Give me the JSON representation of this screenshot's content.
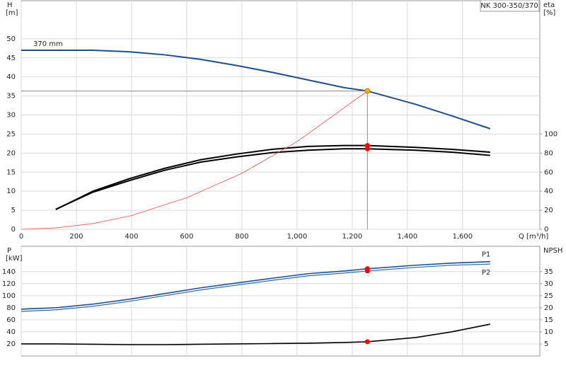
{
  "chart_data": [
    {
      "type": "line",
      "title": "NK 300-350/370",
      "x_label": "Q [m³/h]",
      "y_label": "H",
      "y_unit": "[m]",
      "y2_label": "eta",
      "y2_unit": "[%]",
      "xlim": [
        0,
        1880
      ],
      "xticks": [
        0,
        200,
        400,
        600,
        800,
        {
          "value": 1000,
          "label": "1,000"
        },
        {
          "value": 1200,
          "label": "1,200"
        },
        {
          "value": 1400,
          "label": "1,400"
        },
        {
          "value": 1600,
          "label": "1,600"
        }
      ],
      "show_xtick_labels": true,
      "ylim": [
        0,
        60
      ],
      "yticks": [
        0,
        5,
        10,
        15,
        20,
        25,
        30,
        35,
        40,
        45,
        50
      ],
      "y2lim": [
        0,
        240
      ],
      "y2ticks": [
        0,
        20,
        40,
        60,
        80,
        100
      ],
      "grid": true,
      "operating_q": 1255,
      "guide_color": "#888888",
      "x": [
        0,
        125,
        260,
        390,
        520,
        650,
        780,
        910,
        1040,
        1170,
        1255,
        1430,
        1560,
        1700
      ],
      "series": [
        {
          "name": "370 mm",
          "color": "#1f4e8c",
          "width": 2,
          "point_color": "#f5c400",
          "guides": true,
          "values": [
            47,
            47,
            47,
            46.6,
            45.8,
            44.6,
            43,
            41.2,
            39.2,
            37.2,
            36.3,
            32.8,
            29.8,
            26.4
          ]
        },
        {
          "color": "#000000",
          "width": 2,
          "axis": "y2",
          "point_color": "#ff0000",
          "values": [
            null,
            20.7,
            40,
            53,
            64,
            73,
            79,
            84,
            87,
            88,
            88,
            86,
            84,
            81
          ]
        },
        {
          "color": "#000000",
          "width": 2,
          "axis": "y2",
          "point_color": "#ff0000",
          "values": [
            null,
            21,
            39,
            51,
            62,
            70.5,
            76,
            80.5,
            83,
            84.5,
            84.5,
            83,
            81,
            77.6
          ]
        },
        {
          "color": "#ff4b4b",
          "width": 0.8,
          "x": [
            0,
            125,
            260,
            400,
            600,
            800,
            1000,
            1255
          ],
          "values": [
            0,
            0.36,
            1.5,
            3.6,
            8.3,
            14.7,
            23,
            36.3
          ]
        }
      ]
    },
    {
      "type": "line",
      "y_label": "P",
      "y_unit": "[kW]",
      "y2_label": "NPSH",
      "xlim": [
        0,
        1880
      ],
      "xticks": [
        0,
        200,
        400,
        600,
        800,
        1000,
        1200,
        1400,
        1600
      ],
      "show_xtick_labels": false,
      "ylim": [
        0,
        182
      ],
      "yticks": [
        20,
        40,
        60,
        80,
        100,
        120,
        140
      ],
      "y2lim": [
        0,
        45.5
      ],
      "y2ticks": [
        5,
        10,
        15,
        20,
        25,
        30,
        35
      ],
      "grid": true,
      "operating_q": 1255,
      "x": [
        0,
        125,
        260,
        390,
        520,
        650,
        780,
        910,
        1040,
        1170,
        1255,
        1430,
        1560,
        1700
      ],
      "series": [
        {
          "name": "P1",
          "color": "#1f4e8c",
          "width": 1.6,
          "point_color": "#ff0000",
          "values": [
            77.6,
            80,
            86,
            94,
            103.5,
            113,
            121,
            129,
            136.5,
            141,
            144.7,
            150.6,
            154,
            156.5
          ]
        },
        {
          "name": "P2",
          "color": "#2a6ab0",
          "width": 1.2,
          "point_color": "#ff0000",
          "values": [
            74,
            76.5,
            82.5,
            90.5,
            100,
            109.5,
            117.5,
            125.5,
            133,
            137.5,
            141,
            147,
            150.5,
            152.5
          ]
        },
        {
          "color": "#000000",
          "width": 1.6,
          "axis": "y2",
          "point_color": "#ff0000",
          "values": [
            5,
            5,
            4.85,
            4.7,
            4.7,
            4.85,
            5,
            5.15,
            5.3,
            5.6,
            5.9,
            7.65,
            10,
            13.2
          ]
        }
      ]
    }
  ]
}
